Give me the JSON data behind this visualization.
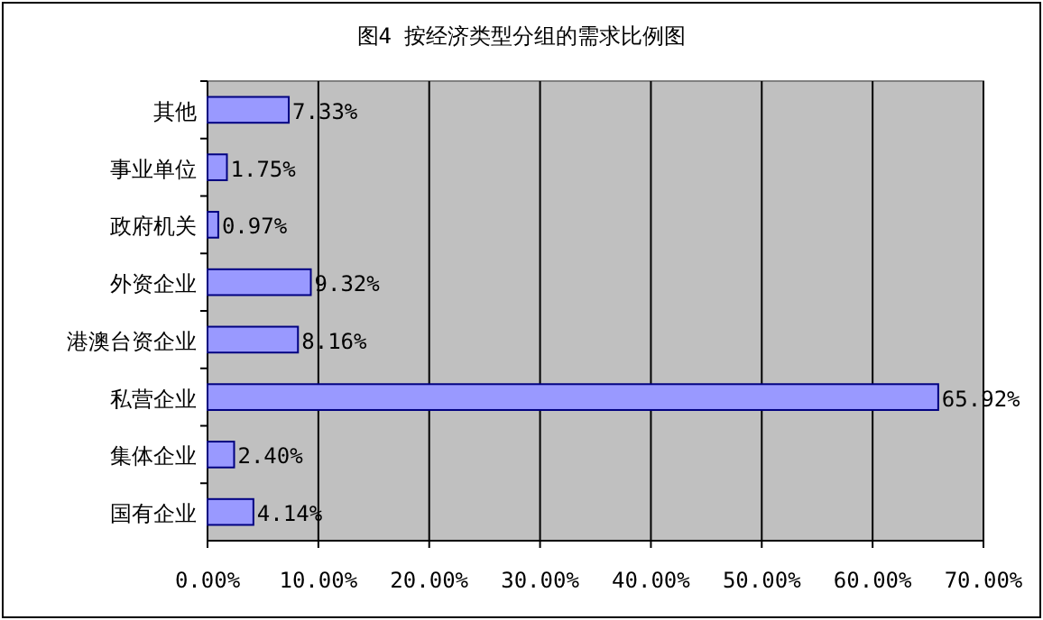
{
  "chart_data": {
    "type": "bar",
    "orientation": "horizontal",
    "title": "图4 按经济类型分组的需求比例图",
    "categories": [
      "其他",
      "事业单位",
      "政府机关",
      "外资企业",
      "港澳台资企业",
      "私营企业",
      "集体企业",
      "国有企业"
    ],
    "values": [
      7.33,
      1.75,
      0.97,
      9.32,
      8.16,
      65.92,
      2.4,
      4.14
    ],
    "value_labels": [
      "7.33%",
      "1.75%",
      "0.97%",
      "9.32%",
      "8.16%",
      "65.92%",
      "2.40%",
      "4.14%"
    ],
    "color": "#9999ff",
    "xlim": [
      0,
      70
    ],
    "xticks": [
      {
        "value": 0,
        "label": "0.00%"
      },
      {
        "value": 10,
        "label": "10.00%"
      },
      {
        "value": 20,
        "label": "20.00%"
      },
      {
        "value": 30,
        "label": "30.00%"
      },
      {
        "value": 40,
        "label": "40.00%"
      },
      {
        "value": 50,
        "label": "50.00%"
      },
      {
        "value": 60,
        "label": "60.00%"
      },
      {
        "value": 70,
        "label": "70.00%"
      }
    ],
    "grid": "x"
  }
}
